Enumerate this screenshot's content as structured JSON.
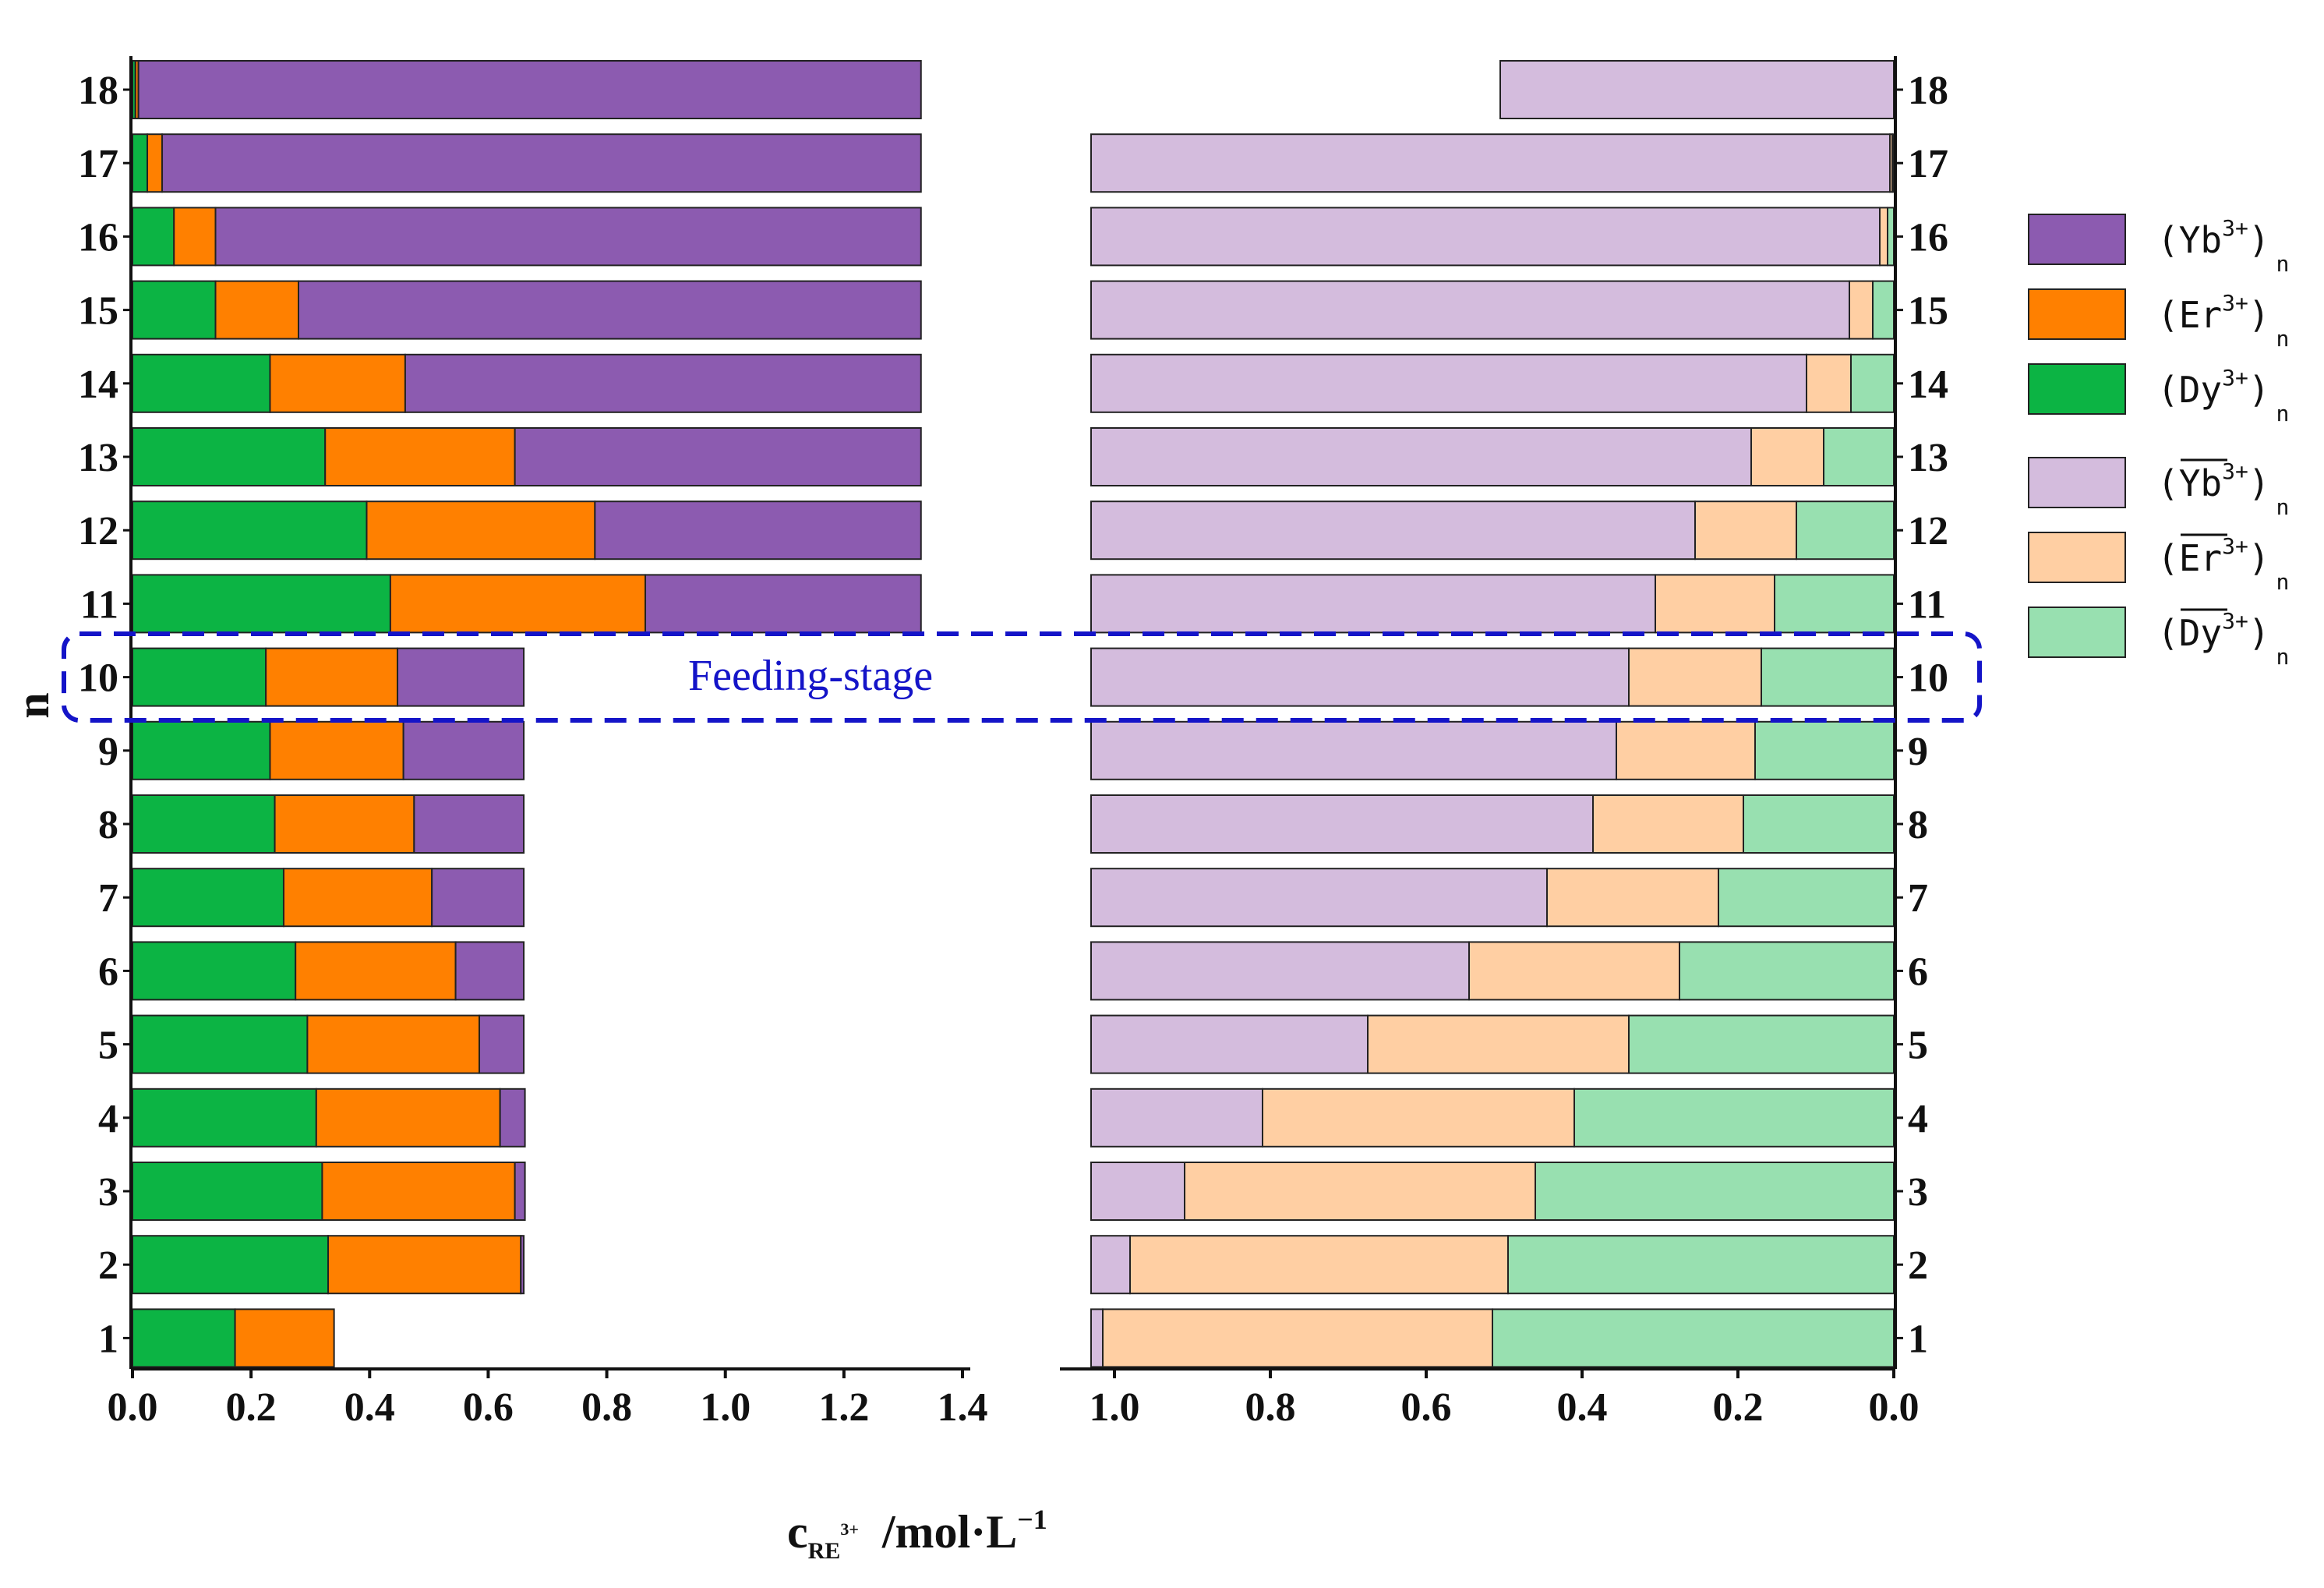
{
  "chart_data": {
    "type": "bar",
    "subtype": "horizontal-stacked-mirrored",
    "ylabel": "n",
    "categories": [
      "1",
      "2",
      "3",
      "4",
      "5",
      "6",
      "7",
      "8",
      "9",
      "10",
      "11",
      "12",
      "13",
      "14",
      "15",
      "16",
      "17",
      "18"
    ],
    "xlabel": {
      "main": "c",
      "sub": "RE",
      "sub_sup": "3+",
      "unit": "/mol·L",
      "unit_sup": "−1"
    },
    "feeding_stage": {
      "label": "Feeding-stage",
      "stage": "10"
    },
    "left_panel": {
      "xlim": [
        0.0,
        1.4
      ],
      "ticks": [
        "0.0",
        "0.2",
        "0.4",
        "0.6",
        "0.8",
        "1.0",
        "1.2",
        "1.4"
      ],
      "tick_values": [
        0.0,
        0.2,
        0.4,
        0.6,
        0.8,
        1.0,
        1.2,
        1.4
      ],
      "series": [
        {
          "name": "Dy",
          "values": [
            0.173,
            0.33,
            0.32,
            0.31,
            0.295,
            0.275,
            0.255,
            0.24,
            0.232,
            0.225,
            0.435,
            0.395,
            0.325,
            0.232,
            0.14,
            0.07,
            0.025,
            0.005
          ]
        },
        {
          "name": "Er",
          "values": [
            0.167,
            0.325,
            0.325,
            0.31,
            0.29,
            0.27,
            0.25,
            0.235,
            0.225,
            0.222,
            0.43,
            0.385,
            0.32,
            0.228,
            0.14,
            0.07,
            0.025,
            0.005
          ]
        },
        {
          "name": "Yb",
          "values": [
            0.0,
            0.005,
            0.017,
            0.042,
            0.075,
            0.115,
            0.155,
            0.185,
            0.203,
            0.213,
            0.465,
            0.55,
            0.685,
            0.87,
            1.05,
            1.19,
            1.28,
            1.32
          ]
        }
      ]
    },
    "right_panel": {
      "xlim": [
        1.03,
        0.0
      ],
      "ticks": [
        "1.0",
        "0.8",
        "0.6",
        "0.4",
        "0.2",
        "0.0"
      ],
      "tick_values": [
        1.0,
        0.8,
        0.6,
        0.4,
        0.2,
        0.0
      ],
      "series": [
        {
          "name": "Dy-bar",
          "values": [
            0.515,
            0.495,
            0.46,
            0.41,
            0.34,
            0.275,
            0.225,
            0.193,
            0.178,
            0.17,
            0.153,
            0.125,
            0.09,
            0.055,
            0.027,
            0.008,
            0.002,
            0.0
          ]
        },
        {
          "name": "Er-bar",
          "values": [
            0.5,
            0.485,
            0.45,
            0.4,
            0.335,
            0.27,
            0.22,
            0.193,
            0.178,
            0.17,
            0.153,
            0.13,
            0.093,
            0.057,
            0.03,
            0.01,
            0.003,
            0.0
          ]
        },
        {
          "name": "Yb-bar",
          "values": [
            0.015,
            0.05,
            0.12,
            0.22,
            0.355,
            0.485,
            0.585,
            0.644,
            0.674,
            0.69,
            0.724,
            0.775,
            0.847,
            0.918,
            0.973,
            1.012,
            1.025,
            0.505
          ]
        }
      ]
    },
    "colors": {
      "Yb": "#8c5bb0",
      "Er": "#ff8000",
      "Dy": "#0cb444",
      "Yb-bar": "#d4bcdd",
      "Er-bar": "#ffcfa3",
      "Dy-bar": "#98e0b0",
      "stage": "#1414c8"
    },
    "legend": {
      "position": "right",
      "entries": [
        {
          "key": "Yb",
          "text": "(Yb",
          "sup": "3+",
          "close": ")",
          "sub": "n",
          "overbar": false
        },
        {
          "key": "Er",
          "text": "(Er",
          "sup": "3+",
          "close": ")",
          "sub": "n",
          "overbar": false
        },
        {
          "key": "Dy",
          "text": "(Dy",
          "sup": "3+",
          "close": ")",
          "sub": "n",
          "overbar": false
        },
        {
          "key": "Yb-bar",
          "text": "(Yb",
          "sup": "3+",
          "close": ")",
          "sub": "n",
          "overbar": true
        },
        {
          "key": "Er-bar",
          "text": "(Er",
          "sup": "3+",
          "close": ")",
          "sub": "n",
          "overbar": true
        },
        {
          "key": "Dy-bar",
          "text": "(Dy",
          "sup": "3+",
          "close": ")",
          "sub": "n",
          "overbar": true
        }
      ]
    }
  }
}
